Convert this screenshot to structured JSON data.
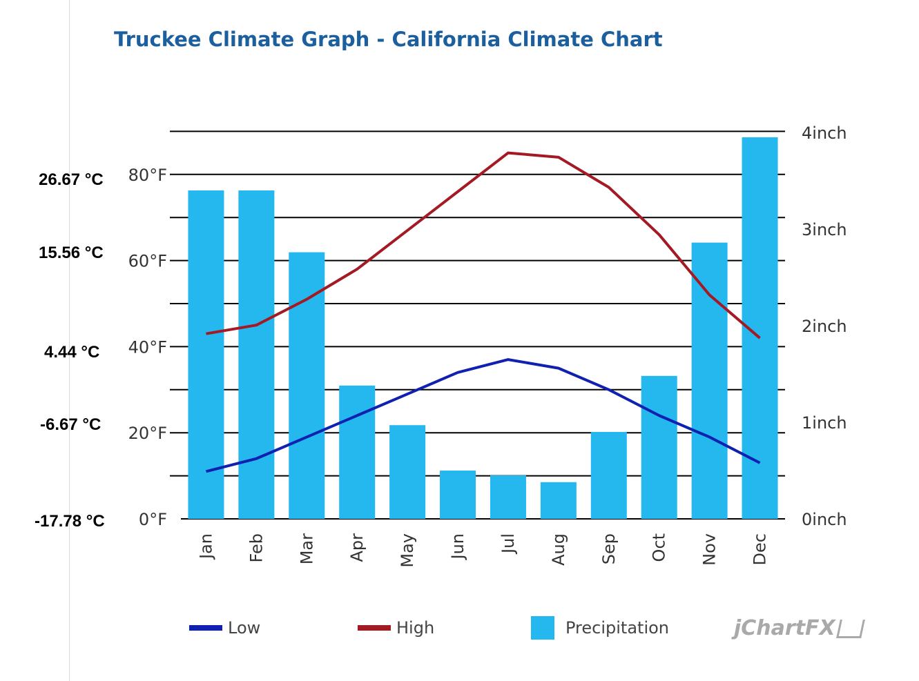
{
  "title": "Truckee Climate Graph - California Climate Chart",
  "celsius_labels": [
    "26.67 °C",
    "15.56 °C",
    "4.44 °C",
    "-6.67 °C",
    "-17.78 °C"
  ],
  "legend": {
    "low": "Low",
    "high": "High",
    "precip": "Precipitation"
  },
  "brand": "jChartFX",
  "colors": {
    "low": "#1020b0",
    "high": "#a31a24",
    "precip": "#24b8ee",
    "grid": "#000000",
    "title": "#1b5f9e"
  },
  "chart_data": {
    "type": "bar",
    "categories": [
      "Jan",
      "Feb",
      "Mar",
      "Apr",
      "May",
      "Jun",
      "Jul",
      "Aug",
      "Sep",
      "Oct",
      "Nov",
      "Dec"
    ],
    "series": [
      {
        "name": "Precipitation",
        "type": "bar",
        "axis": "right",
        "values": [
          3.4,
          3.4,
          2.76,
          1.38,
          0.97,
          0.5,
          0.45,
          0.38,
          0.9,
          1.48,
          2.86,
          3.95
        ]
      },
      {
        "name": "Low",
        "type": "line",
        "axis": "left",
        "values": [
          11,
          14,
          19,
          24,
          29,
          34,
          37,
          35,
          30,
          24,
          19,
          13
        ]
      },
      {
        "name": "High",
        "type": "line",
        "axis": "left",
        "values": [
          43,
          45,
          51,
          58,
          67,
          76,
          85,
          84,
          77,
          66,
          52,
          42
        ]
      }
    ],
    "y_left": {
      "unit": "°F",
      "ticks": [
        0,
        20,
        40,
        60,
        80
      ],
      "tick_labels": [
        "0°F",
        "20°F",
        "40°F",
        "60°F",
        "80°F"
      ],
      "ylim": [
        0,
        90
      ]
    },
    "y_right": {
      "unit": "inch",
      "ticks": [
        0,
        1,
        2,
        3,
        4
      ],
      "tick_labels": [
        "0inch",
        "1inch",
        "2inch",
        "3inch",
        "4inch"
      ],
      "ylim": [
        0,
        4
      ]
    },
    "grid": true,
    "legend_position": "bottom"
  }
}
